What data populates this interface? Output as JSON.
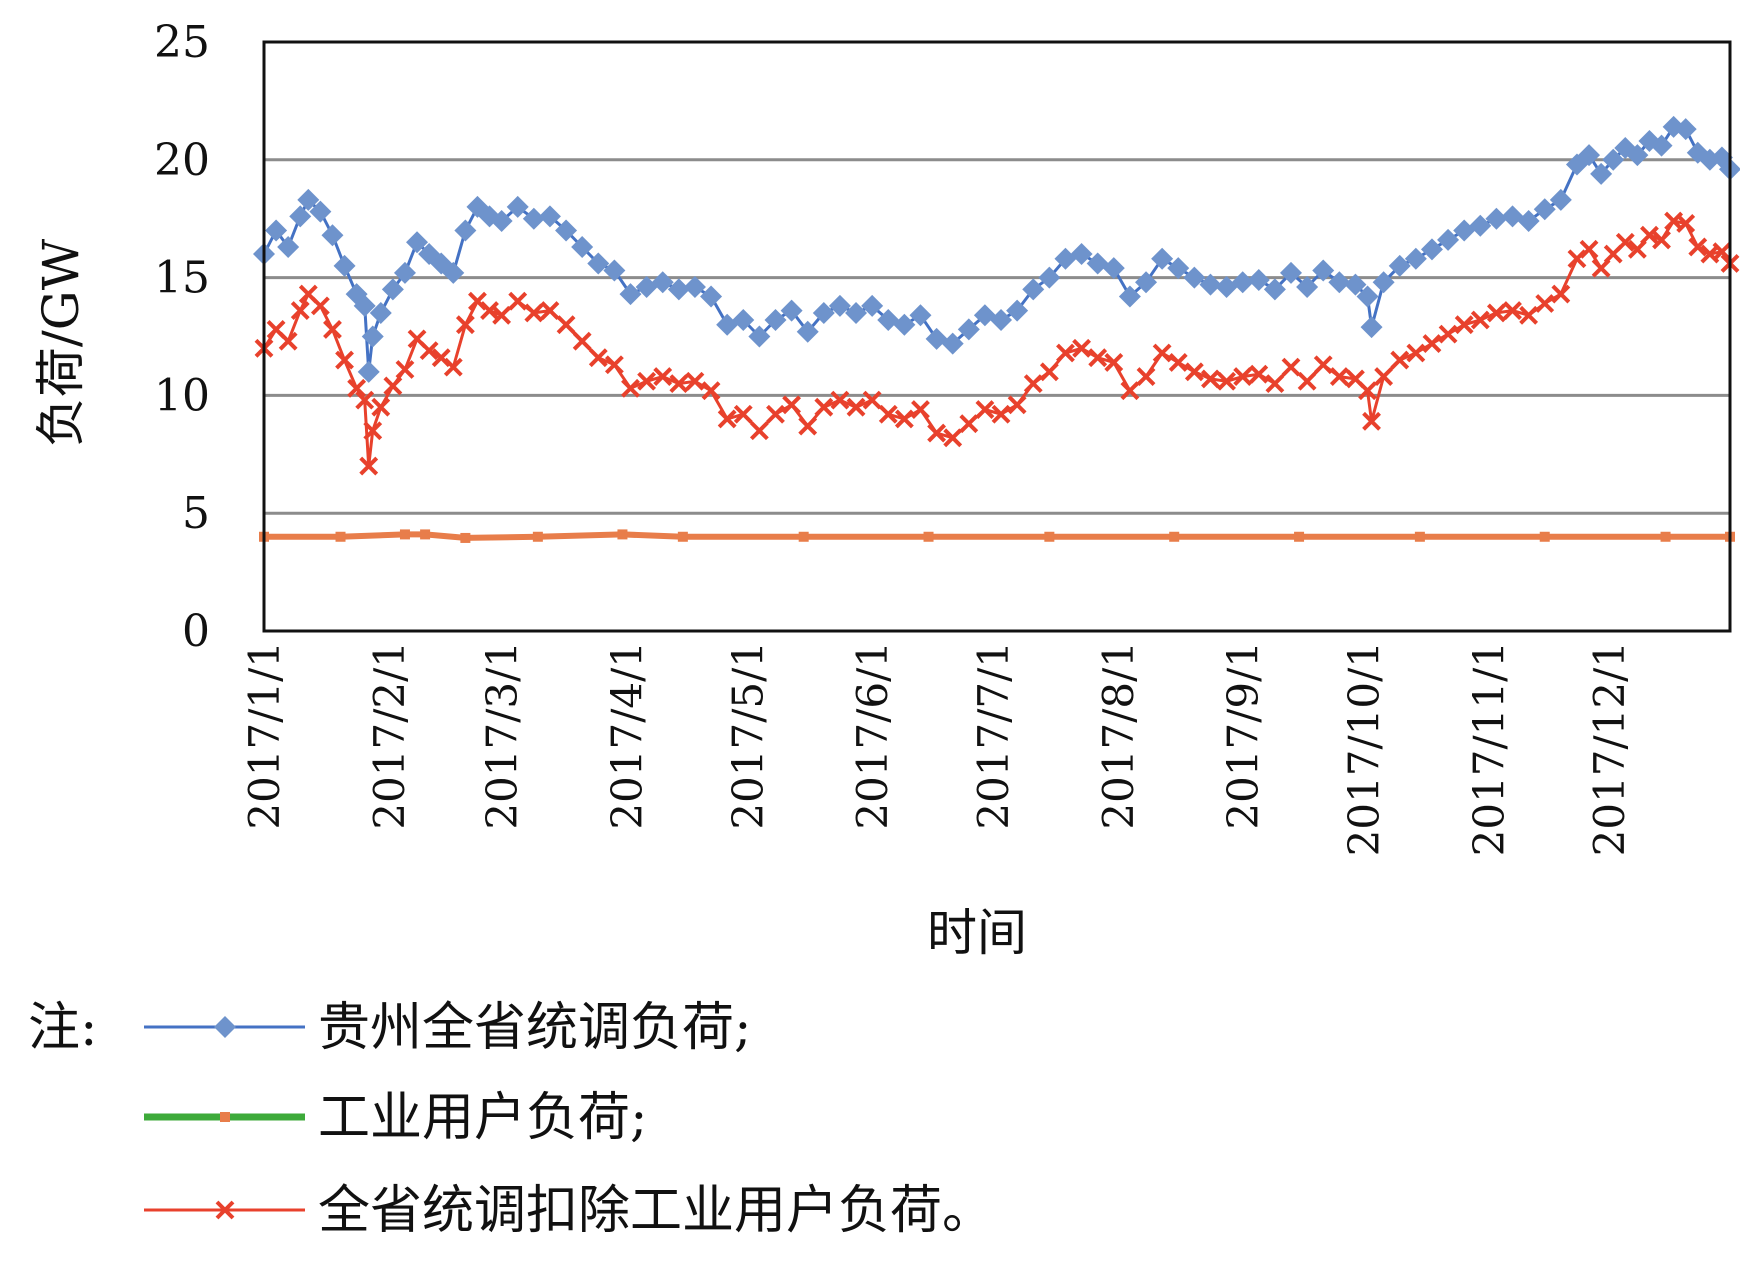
{
  "chart_data": {
    "type": "line",
    "title": "",
    "xlabel": "时间",
    "ylabel": "负荷/GW",
    "ylim": [
      0,
      25
    ],
    "xlim": [
      "2017-01-01",
      "2017-12-31"
    ],
    "y_ticks": [
      "0",
      "5",
      "10",
      "15",
      "20",
      "25"
    ],
    "x_tick_dates": [
      "2017-01-01",
      "2017-02-01",
      "2017-03-01",
      "2017-04-01",
      "2017-05-01",
      "2017-06-01",
      "2017-07-01",
      "2017-08-01",
      "2017-09-01",
      "2017-10-01",
      "2017-11-01",
      "2017-12-01"
    ],
    "x_tick_labels": [
      "2017/1/1",
      "2017/2/1",
      "2017/3/1",
      "2017/4/1",
      "2017/5/1",
      "2017/6/1",
      "2017/7/1",
      "2017/8/1",
      "2017/9/1",
      "2017/10/1",
      "2017/11/1",
      "2017/12/1"
    ],
    "grid": true,
    "legend_position": "bottom",
    "note_label": "注:",
    "series": [
      {
        "name": "贵州全省统调负荷;",
        "color": "#4472C4",
        "marker_color": "#6E93CC",
        "marker": "diamond",
        "x": [
          "2017-01-01",
          "2017-01-04",
          "2017-01-07",
          "2017-01-10",
          "2017-01-12",
          "2017-01-15",
          "2017-01-18",
          "2017-01-21",
          "2017-01-24",
          "2017-01-26",
          "2017-01-27",
          "2017-01-28",
          "2017-01-30",
          "2017-02-02",
          "2017-02-05",
          "2017-02-08",
          "2017-02-11",
          "2017-02-14",
          "2017-02-17",
          "2017-02-20",
          "2017-02-23",
          "2017-02-26",
          "2017-03-01",
          "2017-03-05",
          "2017-03-09",
          "2017-03-13",
          "2017-03-17",
          "2017-03-21",
          "2017-03-25",
          "2017-03-29",
          "2017-04-02",
          "2017-04-06",
          "2017-04-10",
          "2017-04-14",
          "2017-04-18",
          "2017-04-22",
          "2017-04-26",
          "2017-04-30",
          "2017-05-04",
          "2017-05-08",
          "2017-05-12",
          "2017-05-16",
          "2017-05-20",
          "2017-05-24",
          "2017-05-28",
          "2017-06-01",
          "2017-06-05",
          "2017-06-09",
          "2017-06-13",
          "2017-06-17",
          "2017-06-21",
          "2017-06-25",
          "2017-06-29",
          "2017-07-03",
          "2017-07-07",
          "2017-07-11",
          "2017-07-15",
          "2017-07-19",
          "2017-07-23",
          "2017-07-27",
          "2017-07-31",
          "2017-08-04",
          "2017-08-08",
          "2017-08-12",
          "2017-08-16",
          "2017-08-20",
          "2017-08-24",
          "2017-08-28",
          "2017-09-01",
          "2017-09-05",
          "2017-09-09",
          "2017-09-13",
          "2017-09-17",
          "2017-09-21",
          "2017-09-25",
          "2017-09-29",
          "2017-10-02",
          "2017-10-03",
          "2017-10-06",
          "2017-10-10",
          "2017-10-14",
          "2017-10-18",
          "2017-10-22",
          "2017-10-26",
          "2017-10-30",
          "2017-11-03",
          "2017-11-07",
          "2017-11-11",
          "2017-11-15",
          "2017-11-19",
          "2017-11-23",
          "2017-11-26",
          "2017-11-29",
          "2017-12-02",
          "2017-12-05",
          "2017-12-08",
          "2017-12-11",
          "2017-12-14",
          "2017-12-17",
          "2017-12-20",
          "2017-12-23",
          "2017-12-26",
          "2017-12-29",
          "2017-12-31"
        ],
        "values": [
          16.0,
          17.0,
          16.3,
          17.6,
          18.3,
          17.8,
          16.8,
          15.5,
          14.3,
          13.8,
          11.0,
          12.5,
          13.5,
          14.5,
          15.2,
          16.5,
          16.0,
          15.6,
          15.2,
          17.0,
          18.0,
          17.6,
          17.4,
          18.0,
          17.5,
          17.6,
          17.0,
          16.3,
          15.6,
          15.3,
          14.3,
          14.6,
          14.8,
          14.5,
          14.6,
          14.2,
          13.0,
          13.2,
          12.5,
          13.2,
          13.6,
          12.7,
          13.5,
          13.8,
          13.5,
          13.8,
          13.2,
          13.0,
          13.4,
          12.4,
          12.2,
          12.8,
          13.4,
          13.2,
          13.6,
          14.5,
          15.0,
          15.8,
          16.0,
          15.6,
          15.4,
          14.2,
          14.8,
          15.8,
          15.4,
          15.0,
          14.7,
          14.6,
          14.8,
          14.9,
          14.5,
          15.2,
          14.6,
          15.3,
          14.8,
          14.7,
          14.2,
          12.9,
          14.8,
          15.5,
          15.8,
          16.2,
          16.6,
          17.0,
          17.2,
          17.5,
          17.6,
          17.4,
          17.9,
          18.3,
          19.8,
          20.2,
          19.4,
          20.0,
          20.5,
          20.2,
          20.8,
          20.6,
          21.4,
          21.3,
          20.3,
          20.0,
          20.1,
          19.6
        ]
      },
      {
        "name": "工业用户负荷;",
        "color": "#E87D4A",
        "legend_line_color": "#3DAA3A",
        "marker_color": "#E87D4A",
        "marker": "square",
        "x": [
          "2017-01-01",
          "2017-01-20",
          "2017-02-05",
          "2017-02-10",
          "2017-02-20",
          "2017-03-10",
          "2017-03-31",
          "2017-04-15",
          "2017-05-15",
          "2017-06-15",
          "2017-07-15",
          "2017-08-15",
          "2017-09-15",
          "2017-10-15",
          "2017-11-15",
          "2017-12-15",
          "2017-12-31"
        ],
        "values": [
          4.0,
          4.0,
          4.1,
          4.1,
          3.95,
          4.0,
          4.1,
          4.0,
          4.0,
          4.0,
          4.0,
          4.0,
          4.0,
          4.0,
          4.0,
          4.0,
          4.0
        ]
      },
      {
        "name": "全省统调扣除工业用户负荷。",
        "color": "#E8412C",
        "marker_color": "#E8412C",
        "marker": "x",
        "x": [
          "2017-01-01",
          "2017-01-04",
          "2017-01-07",
          "2017-01-10",
          "2017-01-12",
          "2017-01-15",
          "2017-01-18",
          "2017-01-21",
          "2017-01-24",
          "2017-01-26",
          "2017-01-27",
          "2017-01-28",
          "2017-01-30",
          "2017-02-02",
          "2017-02-05",
          "2017-02-08",
          "2017-02-11",
          "2017-02-14",
          "2017-02-17",
          "2017-02-20",
          "2017-02-23",
          "2017-02-26",
          "2017-03-01",
          "2017-03-05",
          "2017-03-09",
          "2017-03-13",
          "2017-03-17",
          "2017-03-21",
          "2017-03-25",
          "2017-03-29",
          "2017-04-02",
          "2017-04-06",
          "2017-04-10",
          "2017-04-14",
          "2017-04-18",
          "2017-04-22",
          "2017-04-26",
          "2017-04-30",
          "2017-05-04",
          "2017-05-08",
          "2017-05-12",
          "2017-05-16",
          "2017-05-20",
          "2017-05-24",
          "2017-05-28",
          "2017-06-01",
          "2017-06-05",
          "2017-06-09",
          "2017-06-13",
          "2017-06-17",
          "2017-06-21",
          "2017-06-25",
          "2017-06-29",
          "2017-07-03",
          "2017-07-07",
          "2017-07-11",
          "2017-07-15",
          "2017-07-19",
          "2017-07-23",
          "2017-07-27",
          "2017-07-31",
          "2017-08-04",
          "2017-08-08",
          "2017-08-12",
          "2017-08-16",
          "2017-08-20",
          "2017-08-24",
          "2017-08-28",
          "2017-09-01",
          "2017-09-05",
          "2017-09-09",
          "2017-09-13",
          "2017-09-17",
          "2017-09-21",
          "2017-09-25",
          "2017-09-29",
          "2017-10-02",
          "2017-10-03",
          "2017-10-06",
          "2017-10-10",
          "2017-10-14",
          "2017-10-18",
          "2017-10-22",
          "2017-10-26",
          "2017-10-30",
          "2017-11-03",
          "2017-11-07",
          "2017-11-11",
          "2017-11-15",
          "2017-11-19",
          "2017-11-23",
          "2017-11-26",
          "2017-11-29",
          "2017-12-02",
          "2017-12-05",
          "2017-12-08",
          "2017-12-11",
          "2017-12-14",
          "2017-12-17",
          "2017-12-20",
          "2017-12-23",
          "2017-12-26",
          "2017-12-29",
          "2017-12-31"
        ],
        "values": [
          12.0,
          12.8,
          12.3,
          13.6,
          14.3,
          13.8,
          12.8,
          11.5,
          10.3,
          9.8,
          7.0,
          8.5,
          9.5,
          10.4,
          11.1,
          12.4,
          11.9,
          11.6,
          11.2,
          13.0,
          14.0,
          13.6,
          13.4,
          14.0,
          13.5,
          13.6,
          13.0,
          12.3,
          11.6,
          11.3,
          10.3,
          10.6,
          10.8,
          10.5,
          10.6,
          10.2,
          9.0,
          9.2,
          8.5,
          9.2,
          9.6,
          8.7,
          9.5,
          9.8,
          9.5,
          9.8,
          9.2,
          9.0,
          9.4,
          8.4,
          8.2,
          8.8,
          9.4,
          9.2,
          9.6,
          10.5,
          11.0,
          11.8,
          12.0,
          11.6,
          11.4,
          10.2,
          10.8,
          11.8,
          11.4,
          11.0,
          10.7,
          10.6,
          10.8,
          10.9,
          10.5,
          11.2,
          10.6,
          11.3,
          10.8,
          10.7,
          10.2,
          8.9,
          10.8,
          11.5,
          11.8,
          12.2,
          12.6,
          13.0,
          13.2,
          13.5,
          13.6,
          13.4,
          13.9,
          14.3,
          15.8,
          16.2,
          15.4,
          16.0,
          16.5,
          16.2,
          16.8,
          16.6,
          17.4,
          17.3,
          16.3,
          16.0,
          16.1,
          15.6
        ]
      }
    ]
  }
}
